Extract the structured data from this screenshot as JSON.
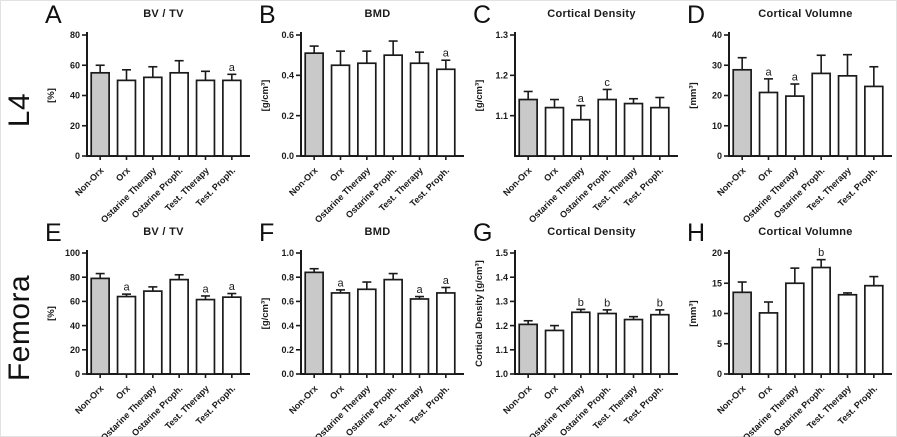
{
  "figure": {
    "row_labels": [
      "L4",
      "Femora"
    ],
    "ink_color": "#1a1a1a",
    "bar_fill": "#ffffff",
    "highlight_fill": "#c9c9c9"
  },
  "chart_data": [
    {
      "type": "bar",
      "panel": "A",
      "row": "L4",
      "title": "BV / TV",
      "ylabel": "[%]",
      "ylim": [
        0,
        80
      ],
      "yticks": [
        0,
        20,
        40,
        60,
        80
      ],
      "ytick_decimals": 0,
      "categories": [
        "Non-Orx",
        "Orx",
        "Ostarine Therapy",
        "Ostarine Proph.",
        "Test. Therapy",
        "Test. Proph."
      ],
      "values": [
        55,
        50,
        52,
        55,
        50,
        50
      ],
      "errors": [
        5,
        7,
        7,
        8,
        6,
        4
      ],
      "annotations": [
        "",
        "",
        "",
        "",
        "",
        "a"
      ],
      "highlight_index": 0,
      "legend": "none",
      "grid": false
    },
    {
      "type": "bar",
      "panel": "B",
      "row": "L4",
      "title": "BMD",
      "ylabel": "[g/cm³]",
      "ylim": [
        0,
        0.6
      ],
      "yticks": [
        0,
        0.2,
        0.4,
        0.6
      ],
      "ytick_decimals": 1,
      "categories": [
        "Non-Orx",
        "Orx",
        "Ostarine Therapy",
        "Ostarine Proph.",
        "Test. Therapy",
        "Test. Proph."
      ],
      "values": [
        0.51,
        0.45,
        0.46,
        0.5,
        0.46,
        0.43
      ],
      "errors": [
        0.035,
        0.07,
        0.06,
        0.07,
        0.055,
        0.045
      ],
      "annotations": [
        "",
        "",
        "",
        "",
        "",
        "a"
      ],
      "highlight_index": 0,
      "legend": "none",
      "grid": false
    },
    {
      "type": "bar",
      "panel": "C",
      "row": "L4",
      "title": "Cortical Density",
      "ylabel": "[g/cm³]",
      "ylim": [
        1.0,
        1.3
      ],
      "yticks": [
        1.1,
        1.2,
        1.3
      ],
      "ytick_decimals": 1,
      "categories": [
        "Non-Orx",
        "Orx",
        "Ostarine Therapy",
        "Ostarine Proph.",
        "Test. Therapy",
        "Test. Proph."
      ],
      "values": [
        1.14,
        1.12,
        1.09,
        1.14,
        1.13,
        1.12
      ],
      "errors": [
        0.02,
        0.02,
        0.035,
        0.025,
        0.012,
        0.025
      ],
      "annotations": [
        "",
        "",
        "a",
        "c",
        "",
        ""
      ],
      "highlight_index": 0,
      "legend": "none",
      "grid": false
    },
    {
      "type": "bar",
      "panel": "D",
      "row": "L4",
      "title": "Cortical Volumne",
      "ylabel": "[mm³]",
      "ylim": [
        0,
        40
      ],
      "yticks": [
        0,
        10,
        20,
        30,
        40
      ],
      "ytick_decimals": 0,
      "categories": [
        "Non-Orx",
        "Orx",
        "Ostarine Therapy",
        "Ostarine Proph.",
        "Test. Therapy",
        "Test. Proph."
      ],
      "values": [
        28.5,
        21,
        19.8,
        27.3,
        26.5,
        23
      ],
      "errors": [
        4,
        4.5,
        4,
        6,
        7,
        6.5
      ],
      "annotations": [
        "",
        "a",
        "a",
        "",
        "",
        ""
      ],
      "highlight_index": 0,
      "legend": "none",
      "grid": false
    },
    {
      "type": "bar",
      "panel": "E",
      "row": "Femora",
      "title": "BV / TV",
      "ylabel": "[%]",
      "ylim": [
        0,
        100
      ],
      "yticks": [
        0,
        20,
        40,
        60,
        80,
        100
      ],
      "ytick_decimals": 0,
      "categories": [
        "Non-Orx",
        "Orx",
        "Ostarine Therapy",
        "Ostarine Proph.",
        "Test. Therapy",
        "Test. Proph."
      ],
      "values": [
        79,
        64,
        68.5,
        78,
        61.5,
        63.5
      ],
      "errors": [
        4,
        2,
        3.5,
        4,
        3,
        3
      ],
      "annotations": [
        "",
        "a",
        "",
        "",
        "a",
        "a"
      ],
      "highlight_index": 0,
      "legend": "none",
      "grid": false
    },
    {
      "type": "bar",
      "panel": "F",
      "row": "Femora",
      "title": "BMD",
      "ylabel": "[g/cm³]",
      "ylim": [
        0,
        1.0
      ],
      "yticks": [
        0,
        0.2,
        0.4,
        0.6,
        0.8,
        1.0
      ],
      "ytick_decimals": 1,
      "categories": [
        "Non-Orx",
        "Orx",
        "Ostarine Therapy",
        "Ostarine Proph.",
        "Test. Therapy",
        "Test. Proph."
      ],
      "values": [
        0.84,
        0.67,
        0.7,
        0.78,
        0.62,
        0.67
      ],
      "errors": [
        0.03,
        0.025,
        0.06,
        0.05,
        0.02,
        0.045
      ],
      "annotations": [
        "",
        "a",
        "",
        "",
        "a",
        "a"
      ],
      "highlight_index": 0,
      "legend": "none",
      "grid": false
    },
    {
      "type": "bar",
      "panel": "G",
      "row": "Femora",
      "title": "Cortical Density",
      "ylabel": "Cortical Density [g/cm³]",
      "ylim": [
        1.0,
        1.5
      ],
      "yticks": [
        1.0,
        1.1,
        1.2,
        1.3,
        1.4,
        1.5
      ],
      "ytick_decimals": 1,
      "categories": [
        "Non-Orx",
        "Orx",
        "Ostarine Therapy",
        "Ostarine Proph.",
        "Test. Therapy",
        "Test. Proph."
      ],
      "values": [
        1.205,
        1.18,
        1.255,
        1.25,
        1.225,
        1.245
      ],
      "errors": [
        0.015,
        0.02,
        0.012,
        0.015,
        0.012,
        0.02
      ],
      "annotations": [
        "",
        "",
        "b",
        "b",
        "",
        "b"
      ],
      "highlight_index": 0,
      "legend": "none",
      "grid": false
    },
    {
      "type": "bar",
      "panel": "H",
      "row": "Femora",
      "title": "Cortical Volumne",
      "ylabel": "[mm³]",
      "ylim": [
        0,
        20
      ],
      "yticks": [
        0,
        5,
        10,
        15,
        20
      ],
      "ytick_decimals": 0,
      "categories": [
        "Non-Orx",
        "Orx",
        "Ostarine Therapy",
        "Ostarine Proph.",
        "Test. Therapy",
        "Test. Proph."
      ],
      "values": [
        13.5,
        10.1,
        15.0,
        17.6,
        13.1,
        14.6
      ],
      "errors": [
        1.7,
        1.8,
        2.5,
        1.3,
        0.3,
        1.5
      ],
      "annotations": [
        "",
        "",
        "",
        "b",
        "",
        ""
      ],
      "highlight_index": 0,
      "legend": "none",
      "grid": false
    }
  ]
}
